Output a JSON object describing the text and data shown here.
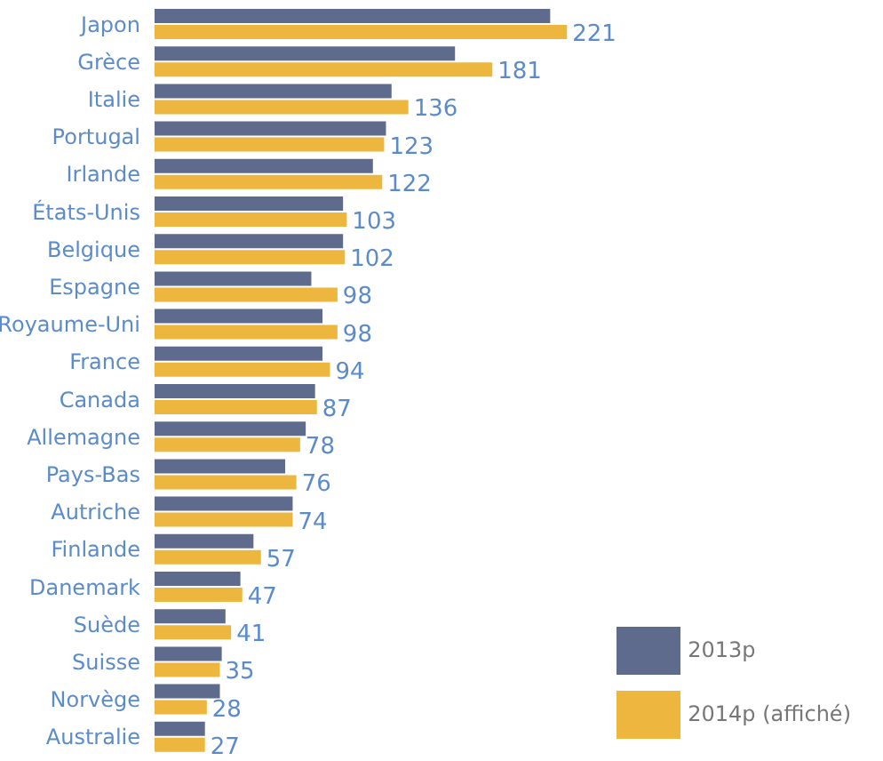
{
  "chart_data": {
    "type": "bar",
    "orientation": "horizontal",
    "categories": [
      "Japon",
      "Grèce",
      "Italie",
      "Portugal",
      "Irlande",
      "États-Unis",
      "Belgique",
      "Espagne",
      "Royaume-Uni",
      "France",
      "Canada",
      "Allemagne",
      "Pays-Bas",
      "Autriche",
      "Finlande",
      "Danemark",
      "Suède",
      "Suisse",
      "Norvège",
      "Australie"
    ],
    "series": [
      {
        "name": "2013p",
        "color": "#5f6b8c",
        "values": [
          212,
          161,
          127,
          124,
          117,
          101,
          101,
          84,
          90,
          90,
          86,
          81,
          70,
          74,
          53,
          46,
          38,
          36,
          35,
          27
        ]
      },
      {
        "name": "2014p (affiché)",
        "color": "#ecb63f",
        "values": [
          221,
          181,
          136,
          123,
          122,
          103,
          102,
          98,
          98,
          94,
          87,
          78,
          76,
          74,
          57,
          47,
          41,
          35,
          28,
          27
        ],
        "value_labels": [
          "221",
          "181",
          "136",
          "123",
          "122",
          "103",
          "102",
          "98",
          "98",
          "94",
          "87",
          "78",
          "76",
          "74",
          "57",
          "47",
          "41",
          "35",
          "28",
          "27"
        ]
      }
    ],
    "legend": "bottom right",
    "grid": false
  }
}
